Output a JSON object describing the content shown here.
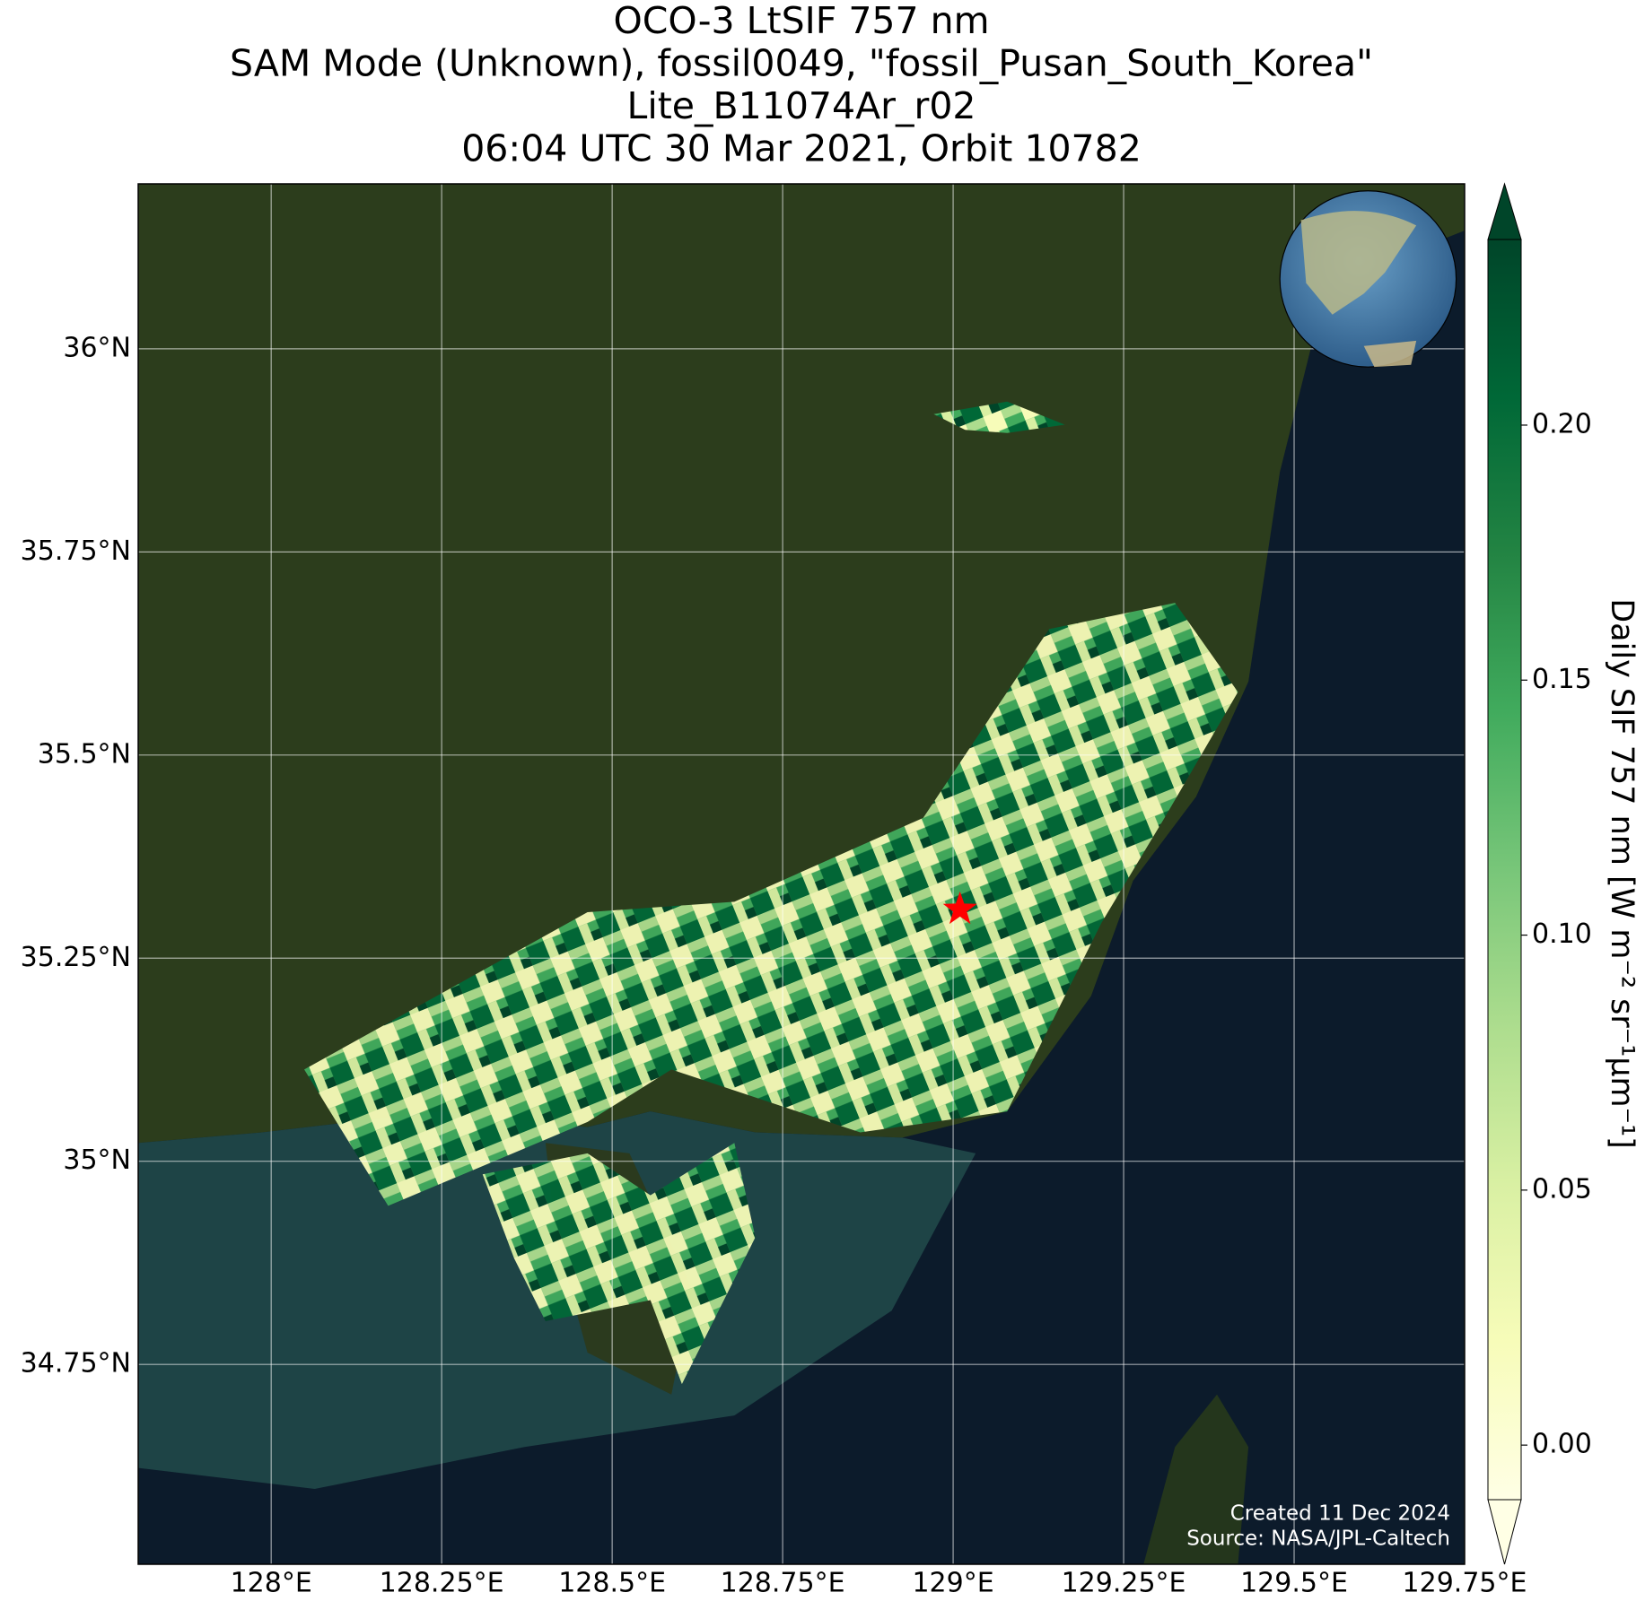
{
  "chart_data": {
    "type": "map",
    "title": [
      "OCO-3 LtSIF 757 nm",
      "SAM Mode (Unknown), fossil0049, \"fossil_Pusan_South_Korea\"",
      "Lite_B11074Ar_r02",
      "06:04 UTC 30 Mar 2021, Orbit 10782"
    ],
    "xlim": [
      127.805,
      129.75
    ],
    "ylim": [
      34.504,
      36.203
    ],
    "xticks": [
      {
        "value": 128,
        "label": "128°E"
      },
      {
        "value": 128.25,
        "label": "128.25°E"
      },
      {
        "value": 128.5,
        "label": "128.5°E"
      },
      {
        "value": 128.75,
        "label": "128.75°E"
      },
      {
        "value": 129,
        "label": "129°E"
      },
      {
        "value": 129.25,
        "label": "129.25°E"
      },
      {
        "value": 129.5,
        "label": "129.5°E"
      },
      {
        "value": 129.75,
        "label": "129.75°E"
      }
    ],
    "yticks": [
      {
        "value": 34.75,
        "label": "34.75°N"
      },
      {
        "value": 35,
        "label": "35°N"
      },
      {
        "value": 35.25,
        "label": "35.25°N"
      },
      {
        "value": 35.5,
        "label": "35.5°N"
      },
      {
        "value": 35.75,
        "label": "35.75°N"
      },
      {
        "value": 36,
        "label": "36°N"
      }
    ],
    "grid": true,
    "target": {
      "lon": 129.01,
      "lat": 35.31,
      "color": "#ff0000"
    },
    "colorbar": {
      "label": "Daily SIF 757 nm [W m⁻² sr⁻¹µm⁻¹]",
      "lim": [
        -0.0107,
        0.2364
      ],
      "ticks": [
        {
          "value": 0,
          "label": "0.00"
        },
        0.05,
        {
          "value": 0.1,
          "label": "0.10"
        },
        0.15,
        {
          "value": 0.2,
          "label": "0.20"
        }
      ],
      "colors": [
        "#ffffe5",
        "#f7fcb9",
        "#d9f0a3",
        "#addd8e",
        "#78c679",
        "#41ab5d",
        "#238443",
        "#006837",
        "#004529"
      ]
    },
    "credits": [
      "Created 11 Dec 2024",
      "Source: NASA/JPL-Caltech"
    ]
  }
}
